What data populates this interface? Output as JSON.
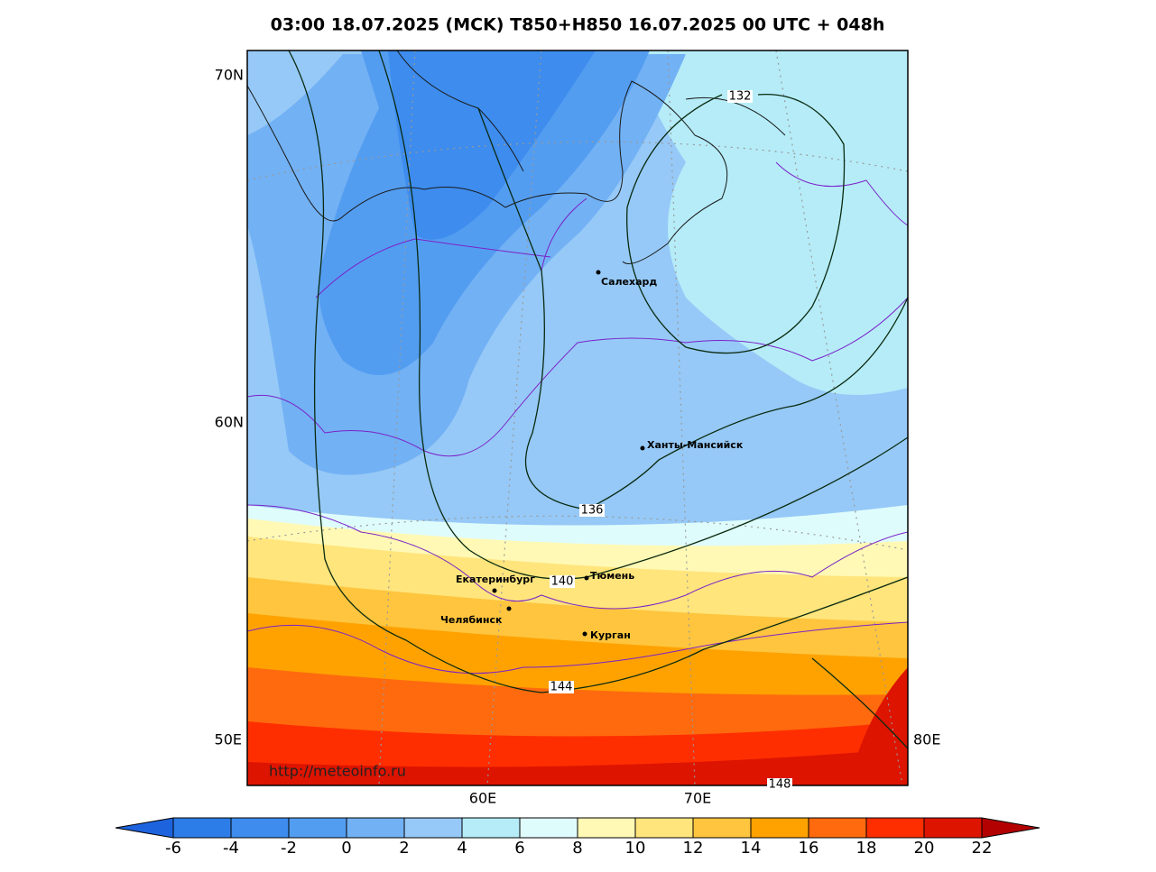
{
  "title": "03:00 18.07.2025 (MCK) T850+H850 16.07.2025 00 UTC + 048h",
  "axis_labels": [
    "70N",
    "60N",
    "50E",
    "80E",
    "60E",
    "70E"
  ],
  "cities": [
    "Салехард",
    "Ханты-Мансийск",
    "Екатеринбург",
    "Тюмень",
    "Челябинск",
    "Курган"
  ],
  "contour_labels": [
    132,
    136,
    140,
    144,
    148
  ],
  "watermark": "http://meteoinfo.ru",
  "colorbar": {
    "ticks": [
      -6,
      -4,
      -2,
      0,
      2,
      4,
      6,
      8,
      10,
      12,
      14,
      16,
      18,
      20,
      22
    ],
    "colors": [
      "#2d7de8",
      "#3d8cee",
      "#539df1",
      "#72b1f4",
      "#96c9f7",
      "#b5ecf8",
      "#dffcfc",
      "#fff9b5",
      "#ffe57c",
      "#ffc53e",
      "#ffa200",
      "#ff6a0e",
      "#ff2e00",
      "#dd1400"
    ],
    "under_color": "#1e63de",
    "over_color": "#b30000"
  }
}
